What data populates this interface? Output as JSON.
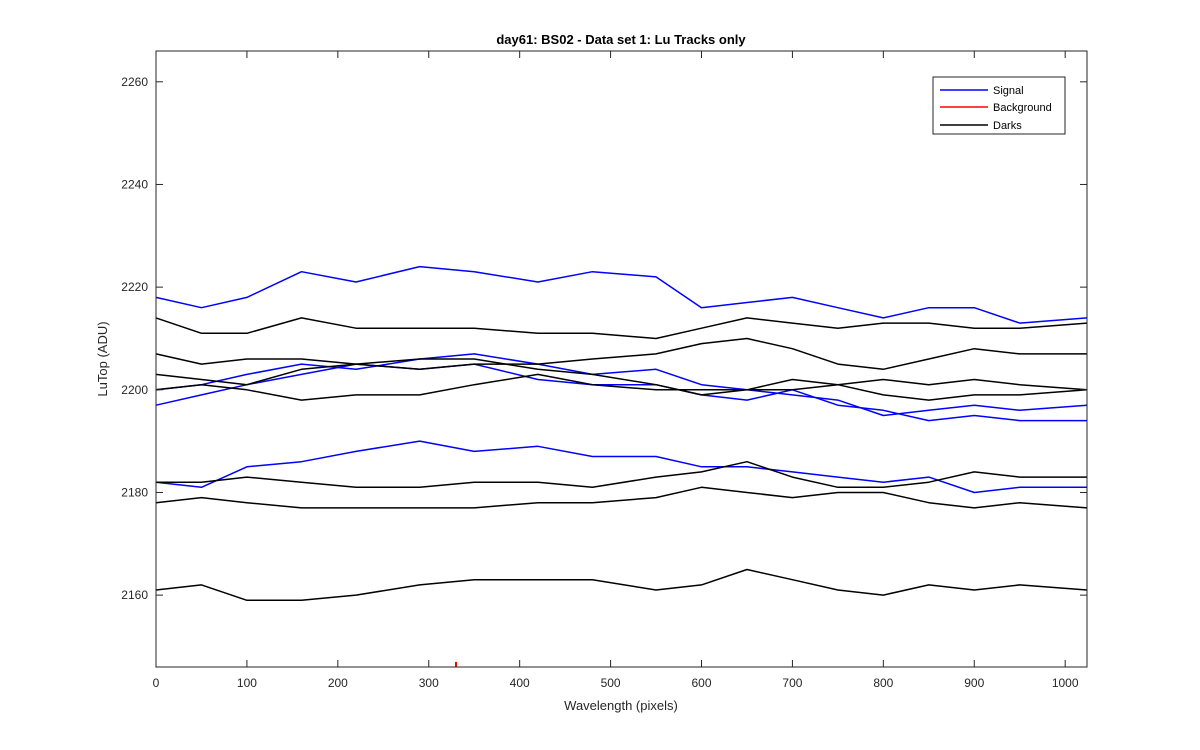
{
  "chart_data": {
    "type": "line",
    "title": "day61: BS02 - Data set 1: Lu Tracks only",
    "xlabel": "Wavelength (pixels)",
    "ylabel": "LuTop (ADU)",
    "xlim": [
      0,
      1024
    ],
    "ylim": [
      2146,
      2266
    ],
    "xticks": [
      0,
      100,
      200,
      300,
      400,
      500,
      600,
      700,
      800,
      900,
      1000
    ],
    "yticks": [
      2160,
      2180,
      2200,
      2220,
      2240,
      2260
    ],
    "xtick_labels": [
      "0",
      "100",
      "200",
      "300",
      "400",
      "500",
      "600",
      "700",
      "800",
      "900",
      "1000"
    ],
    "ytick_labels": [
      "2160",
      "2180",
      "2200",
      "2220",
      "2240",
      "2260"
    ],
    "grid": false,
    "legend_position": "top-right",
    "legend": [
      {
        "label": "Signal",
        "color": "#0000ff"
      },
      {
        "label": "Background",
        "color": "#ff0000"
      },
      {
        "label": "Darks",
        "color": "#000000"
      }
    ],
    "series": [
      {
        "group": "Signal",
        "color": "#0000ff",
        "x": [
          0,
          50,
          100,
          160,
          220,
          290,
          350,
          420,
          480,
          550,
          600,
          650,
          700,
          750,
          800,
          850,
          900,
          950,
          1024
        ],
        "y": [
          2218,
          2216,
          2218,
          2223,
          2221,
          2224,
          2223,
          2221,
          2223,
          2222,
          2216,
          2217,
          2218,
          2216,
          2214,
          2216,
          2216,
          2213,
          2214
        ]
      },
      {
        "group": "Signal",
        "color": "#0000ff",
        "x": [
          0,
          50,
          100,
          160,
          220,
          290,
          350,
          420,
          480,
          550,
          600,
          650,
          700,
          750,
          800,
          850,
          900,
          950,
          1024
        ],
        "y": [
          2200,
          2201,
          2203,
          2205,
          2204,
          2206,
          2207,
          2205,
          2203,
          2204,
          2201,
          2200,
          2199,
          2198,
          2195,
          2196,
          2197,
          2196,
          2197
        ]
      },
      {
        "group": "Signal",
        "color": "#0000ff",
        "x": [
          0,
          50,
          100,
          160,
          220,
          290,
          350,
          420,
          480,
          550,
          600,
          650,
          700,
          750,
          800,
          850,
          900,
          950,
          1024
        ],
        "y": [
          2197,
          2199,
          2201,
          2203,
          2205,
          2204,
          2205,
          2202,
          2201,
          2201,
          2199,
          2198,
          2200,
          2197,
          2196,
          2194,
          2195,
          2194,
          2194
        ]
      },
      {
        "group": "Signal",
        "color": "#0000ff",
        "x": [
          0,
          50,
          100,
          160,
          220,
          290,
          350,
          420,
          480,
          550,
          600,
          650,
          700,
          750,
          800,
          850,
          900,
          950,
          1024
        ],
        "y": [
          2182,
          2181,
          2185,
          2186,
          2188,
          2190,
          2188,
          2189,
          2187,
          2187,
          2185,
          2185,
          2184,
          2183,
          2182,
          2183,
          2180,
          2181,
          2181
        ]
      },
      {
        "group": "Background",
        "color": "#ff0000",
        "x": [
          330,
          330
        ],
        "y": [
          2146,
          2147
        ]
      },
      {
        "group": "Darks",
        "color": "#000000",
        "x": [
          0,
          50,
          100,
          160,
          220,
          290,
          350,
          420,
          480,
          550,
          600,
          650,
          700,
          750,
          800,
          850,
          900,
          950,
          1024
        ],
        "y": [
          2214,
          2211,
          2211,
          2214,
          2212,
          2212,
          2212,
          2211,
          2211,
          2210,
          2212,
          2214,
          2213,
          2212,
          2213,
          2213,
          2212,
          2212,
          2213
        ]
      },
      {
        "group": "Darks",
        "color": "#000000",
        "x": [
          0,
          50,
          100,
          160,
          220,
          290,
          350,
          420,
          480,
          550,
          600,
          650,
          700,
          750,
          800,
          850,
          900,
          950,
          1024
        ],
        "y": [
          2207,
          2205,
          2206,
          2206,
          2205,
          2204,
          2205,
          2205,
          2206,
          2207,
          2209,
          2210,
          2208,
          2205,
          2204,
          2206,
          2208,
          2207,
          2207
        ]
      },
      {
        "group": "Darks",
        "color": "#000000",
        "x": [
          0,
          50,
          100,
          160,
          220,
          290,
          350,
          420,
          480,
          550,
          600,
          650,
          700,
          750,
          800,
          850,
          900,
          950,
          1024
        ],
        "y": [
          2203,
          2202,
          2201,
          2204,
          2205,
          2206,
          2206,
          2204,
          2203,
          2201,
          2199,
          2200,
          2202,
          2201,
          2199,
          2198,
          2199,
          2199,
          2200
        ]
      },
      {
        "group": "Darks",
        "color": "#000000",
        "x": [
          0,
          50,
          100,
          160,
          220,
          290,
          350,
          420,
          480,
          550,
          600,
          650,
          700,
          750,
          800,
          850,
          900,
          950,
          1024
        ],
        "y": [
          2200,
          2201,
          2200,
          2198,
          2199,
          2199,
          2201,
          2203,
          2201,
          2200,
          2200,
          2200,
          2200,
          2201,
          2202,
          2201,
          2202,
          2201,
          2200
        ]
      },
      {
        "group": "Darks",
        "color": "#000000",
        "x": [
          0,
          50,
          100,
          160,
          220,
          290,
          350,
          420,
          480,
          550,
          600,
          650,
          700,
          750,
          800,
          850,
          900,
          950,
          1024
        ],
        "y": [
          2182,
          2182,
          2183,
          2182,
          2181,
          2181,
          2182,
          2182,
          2181,
          2183,
          2184,
          2186,
          2183,
          2181,
          2181,
          2182,
          2184,
          2183,
          2183
        ]
      },
      {
        "group": "Darks",
        "color": "#000000",
        "x": [
          0,
          50,
          100,
          160,
          220,
          290,
          350,
          420,
          480,
          550,
          600,
          650,
          700,
          750,
          800,
          850,
          900,
          950,
          1024
        ],
        "y": [
          2178,
          2179,
          2178,
          2177,
          2177,
          2177,
          2177,
          2178,
          2178,
          2179,
          2181,
          2180,
          2179,
          2180,
          2180,
          2178,
          2177,
          2178,
          2177
        ]
      },
      {
        "group": "Darks",
        "color": "#000000",
        "x": [
          0,
          50,
          100,
          160,
          220,
          290,
          350,
          420,
          480,
          550,
          600,
          650,
          700,
          750,
          800,
          850,
          900,
          950,
          1024
        ],
        "y": [
          2161,
          2162,
          2159,
          2159,
          2160,
          2162,
          2163,
          2163,
          2163,
          2161,
          2162,
          2165,
          2163,
          2161,
          2160,
          2162,
          2161,
          2162,
          2161
        ]
      }
    ]
  }
}
